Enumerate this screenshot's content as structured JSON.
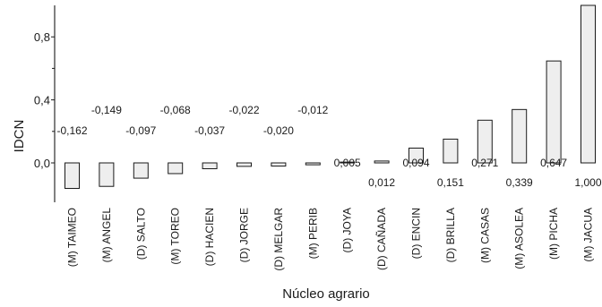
{
  "chart_data": {
    "type": "bar",
    "xlabel": "Núcleo agrario",
    "ylabel": "IDCN",
    "ylim": [
      -0.25,
      1.0
    ],
    "yticks": [
      0.0,
      0.4,
      0.8
    ],
    "ytick_labels": [
      "0,0",
      "0,4",
      "0,8"
    ],
    "grid": false,
    "categories": [
      "(M) TAIMEO",
      "(M) ANGEL",
      "(D) SALTO",
      "(M) TOREO",
      "(D) HACIEN",
      "(D) JORGE",
      "(D) MELGAR",
      "(M) PERIB",
      "(D) JOYA",
      "(D) CAÑADA",
      "(D) ENCIN",
      "(D) BRILLA",
      "(M) CASAS",
      "(M) ASOLEA",
      "(M) PICHA",
      "(M) JACUA"
    ],
    "values": [
      -0.162,
      -0.149,
      -0.097,
      -0.068,
      -0.037,
      -0.022,
      -0.02,
      -0.012,
      0.005,
      0.012,
      0.094,
      0.151,
      0.271,
      0.339,
      0.647,
      1.0
    ],
    "value_labels": [
      "-0,162",
      "-0,149",
      "-0,097",
      "-0,068",
      "-0,037",
      "-0,022",
      "-0,020",
      "-0,012",
      "0,005",
      "0,012",
      "0,094",
      "0,151",
      "0,271",
      "0,339",
      "0,647",
      "1,000"
    ],
    "label_rows": [
      "low",
      "high",
      "low",
      "high",
      "low",
      "high",
      "low",
      "high",
      "high",
      "low",
      "high",
      "low",
      "high",
      "low",
      "high",
      "low"
    ],
    "colors": {
      "bar_fill": "#eeeeee",
      "bar_stroke": "#1a1a1a",
      "axis": "#1a1a1a"
    }
  }
}
